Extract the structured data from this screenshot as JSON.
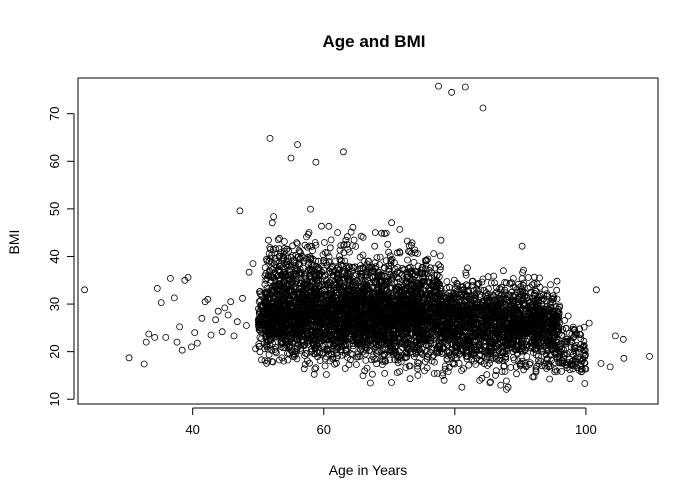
{
  "chart_data": {
    "type": "scatter",
    "title": "Age and BMI",
    "xlabel": "Age in Years",
    "ylabel": "BMI",
    "xlim": [
      22.5,
      111
    ],
    "ylim": [
      9,
      77.5
    ],
    "xticks": [
      40,
      60,
      80,
      100
    ],
    "yticks": [
      10,
      20,
      30,
      40,
      50,
      60,
      70
    ],
    "grid": false,
    "legend": "none",
    "point_style": "open-circle",
    "point_color": "#000000",
    "points": [
      [
        23.5,
        33
      ],
      [
        30.3,
        18.7
      ],
      [
        32.6,
        17.4
      ],
      [
        32.9,
        22
      ],
      [
        33.3,
        23.7
      ],
      [
        34.2,
        23
      ],
      [
        34.6,
        33.3
      ],
      [
        35.2,
        30.3
      ],
      [
        35.9,
        23
      ],
      [
        36.6,
        35.4
      ],
      [
        37.2,
        31.3
      ],
      [
        37.6,
        22
      ],
      [
        38,
        25.2
      ],
      [
        38.4,
        20.3
      ],
      [
        38.8,
        35
      ],
      [
        39.3,
        35.6
      ],
      [
        39.8,
        21
      ],
      [
        40.3,
        24
      ],
      [
        40.7,
        21.8
      ],
      [
        41.4,
        27
      ],
      [
        41.9,
        30.5
      ],
      [
        42.3,
        31
      ],
      [
        42.8,
        23.5
      ],
      [
        43.5,
        26.7
      ],
      [
        43.9,
        28.5
      ],
      [
        44.5,
        24.2
      ],
      [
        44.9,
        29.2
      ],
      [
        45.4,
        27.7
      ],
      [
        45.8,
        30.5
      ],
      [
        46.3,
        23.3
      ],
      [
        46.8,
        26.3
      ],
      [
        47.2,
        49.6
      ],
      [
        47.6,
        31.2
      ],
      [
        48.2,
        25.5
      ],
      [
        48.6,
        36.7
      ],
      [
        49.2,
        38.5
      ],
      [
        49.6,
        20.6
      ],
      [
        51.8,
        64.8
      ],
      [
        56,
        63.5
      ],
      [
        55,
        60.7
      ],
      [
        58.8,
        59.8
      ],
      [
        63,
        62
      ],
      [
        77.5,
        75.8
      ],
      [
        79.5,
        74.5
      ],
      [
        81.6,
        75.6
      ],
      [
        84.3,
        71.2
      ],
      [
        97.3,
        27.5
      ],
      [
        98.3,
        24.5
      ],
      [
        99.2,
        21.5
      ],
      [
        100.5,
        26
      ],
      [
        101.6,
        33
      ],
      [
        102.3,
        17.5
      ],
      [
        103.7,
        16.8
      ],
      [
        104.5,
        23.3
      ],
      [
        105.7,
        22.6
      ],
      [
        105.8,
        18.6
      ],
      [
        109.7,
        19
      ]
    ],
    "point_clusters": [
      {
        "x": [
          50,
          96
        ],
        "y": [
          18,
          40
        ],
        "density": "very-high"
      },
      {
        "x": [
          51,
          65
        ],
        "y": [
          15,
          55
        ],
        "density": "high"
      },
      {
        "x": [
          65,
          78
        ],
        "y": [
          13,
          53
        ],
        "density": "high"
      },
      {
        "x": [
          78,
          93
        ],
        "y": [
          12,
          45
        ],
        "density": "medium"
      },
      {
        "x": [
          93,
          100
        ],
        "y": [
          12,
          32
        ],
        "density": "low"
      }
    ]
  }
}
